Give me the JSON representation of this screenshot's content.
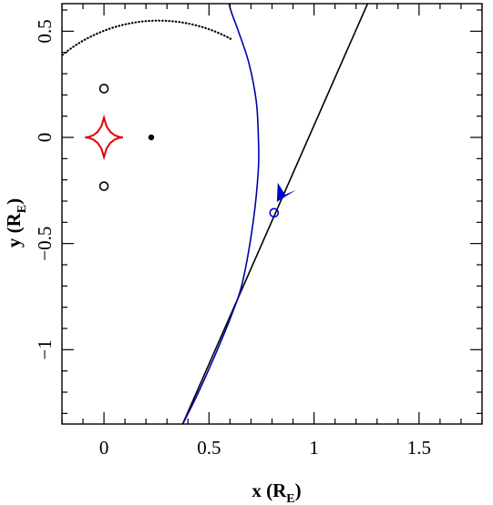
{
  "chart_data": {
    "type": "scatter",
    "title": "",
    "xlabel_main": "x (R",
    "xlabel_sub": "E",
    "xlabel_end": ")",
    "ylabel_main": "y (R",
    "ylabel_sub": "E",
    "ylabel_end": ")",
    "xlim": [
      -0.2,
      1.8
    ],
    "ylim": [
      -1.35,
      0.63
    ],
    "xticks": [
      0,
      0.5,
      1,
      1.5
    ],
    "xtick_labels": [
      "0",
      "0.5",
      "1",
      "1.5"
    ],
    "yticks": [
      0.5,
      0,
      -0.5,
      -1
    ],
    "ytick_labels": [
      "0.5",
      "0",
      "−0.5",
      "−1"
    ],
    "grid": false,
    "series": [
      {
        "kind": "caustic",
        "color": "#dd0000",
        "points": [
          [
            -0.09,
            0
          ],
          [
            -0.071,
            0.0025
          ],
          [
            -0.05,
            0.0105
          ],
          [
            -0.03,
            0.026
          ],
          [
            -0.012,
            0.053
          ],
          [
            0,
            0.093
          ],
          [
            0.012,
            0.053
          ],
          [
            0.03,
            0.026
          ],
          [
            0.05,
            0.0105
          ],
          [
            0.071,
            0.0025
          ],
          [
            0.09,
            0
          ],
          [
            0.071,
            -0.0025
          ],
          [
            0.05,
            -0.0105
          ],
          [
            0.03,
            -0.026
          ],
          [
            0.012,
            -0.053
          ],
          [
            0,
            -0.093
          ],
          [
            -0.012,
            -0.053
          ],
          [
            -0.03,
            -0.026
          ],
          [
            -0.05,
            -0.0105
          ],
          [
            -0.071,
            -0.0025
          ],
          [
            -0.09,
            0
          ]
        ]
      },
      {
        "kind": "source-trajectory",
        "color": "#000000",
        "points": [
          [
            0.37,
            -1.36
          ],
          [
            1.255,
            0.63
          ]
        ]
      },
      {
        "kind": "image-trajectory",
        "color": "#0000aa",
        "points": [
          [
            0.37,
            -1.36
          ],
          [
            0.45,
            -1.2
          ],
          [
            0.54,
            -1.0
          ],
          [
            0.61,
            -0.83
          ],
          [
            0.66,
            -0.68
          ],
          [
            0.71,
            -0.4
          ],
          [
            0.735,
            -0.15
          ],
          [
            0.735,
            0
          ],
          [
            0.725,
            0.17
          ],
          [
            0.69,
            0.35
          ],
          [
            0.64,
            0.5
          ],
          [
            0.61,
            0.58
          ],
          [
            0.595,
            0.63
          ]
        ]
      },
      {
        "kind": "critical-curve-arc",
        "color": "#000000",
        "center": [
          0.26,
          -0.18
        ],
        "radius": 0.73,
        "theta_start_deg": 62,
        "theta_end_deg": 196
      }
    ],
    "markers": [
      {
        "name": "lens-star-upper",
        "x": 0,
        "y": 0.23,
        "style": "open-circle",
        "color": "#000000"
      },
      {
        "name": "lens-star-lower",
        "x": 0,
        "y": -0.23,
        "style": "open-circle",
        "color": "#000000"
      },
      {
        "name": "companion-point",
        "x": 0.225,
        "y": 0,
        "style": "filled-dot",
        "color": "#000000"
      },
      {
        "name": "source-position",
        "x": 0.81,
        "y": -0.355,
        "style": "open-circle",
        "color": "#0000cc"
      }
    ],
    "arrow": {
      "x": 0.81,
      "y": -0.355,
      "direction": "down-left",
      "color": "#0000cc"
    }
  }
}
